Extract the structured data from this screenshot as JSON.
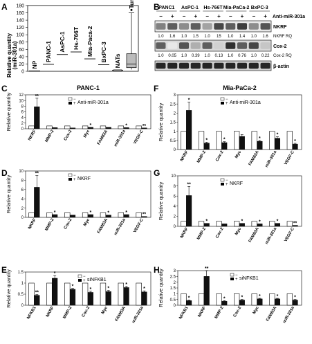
{
  "panelA": {
    "letter": "A",
    "ylabel": "Relative quantity",
    "ylabel_sub": "(miR-301a)",
    "yticks": [
      0,
      20,
      40,
      60,
      80,
      100,
      120,
      140,
      160,
      180
    ],
    "ymax": 180,
    "categories": [
      {
        "label": "NP",
        "value": 1
      },
      {
        "label": "PANC-1",
        "value": 19
      },
      {
        "label": "AsPC-1",
        "value": 46
      },
      {
        "label": "Hs-766T",
        "value": 53
      },
      {
        "label": "Mia-Paca-2",
        "value": 34
      },
      {
        "label": "BxPC-3",
        "value": 18
      },
      {
        "label": "NATs",
        "value": 3
      },
      {
        "label": "Tumours",
        "value": null
      }
    ],
    "tumour_box": {
      "min": 5,
      "q1": 10,
      "median": 20,
      "q3": 48,
      "max": 160,
      "outlier": 168
    }
  },
  "panelB": {
    "letter": "B",
    "cell_lines": [
      "PANC1",
      "AsPC-1",
      "Hs-766T",
      "Mia-PaCa-2",
      "BxPC-3"
    ],
    "treatment_label": "Anti-miR-301a",
    "signs": [
      "−",
      "+",
      "−",
      "+",
      "−",
      "+",
      "−",
      "+",
      "−",
      "+"
    ],
    "nkrf_label": "NKRF",
    "nkrf_rq_label": "NKRF RQ",
    "nkrf_rq": [
      "1.0",
      "1.6",
      "1.0",
      "1.5",
      "1.0",
      "15",
      "1.0",
      "1.4",
      "1.0",
      "1.6"
    ],
    "cox_label": "Cox-2",
    "cox_rq_label": "Cox-2 RQ",
    "cox_rq": [
      "1.0",
      "0.05",
      "1.0",
      "0.39",
      "1.0",
      "0.13",
      "1.0",
      "0.76",
      "1.0",
      "0.22"
    ],
    "actin_label": "β-actin"
  },
  "panels": [
    {
      "id": "C",
      "letter": "C",
      "title": "PANC-1",
      "ylabel": "Relative quantity",
      "legend": [
        "Anti-miR-301a"
      ],
      "ymax": 12,
      "yticks": [
        0,
        2,
        4,
        6,
        8,
        10,
        12
      ],
      "categories": [
        "NKRF",
        "MMP-2",
        "Cox-2",
        "Myc",
        "FAM83A",
        "miR-301a",
        "VEGF-C"
      ],
      "control": [
        1,
        1,
        1,
        1,
        1,
        1,
        1
      ],
      "treated": [
        7.8,
        0.4,
        0.3,
        0.5,
        0.5,
        0.4,
        0.3
      ],
      "error": [
        3.0,
        0,
        0,
        0,
        0,
        0,
        0
      ],
      "sig": [
        "**",
        "",
        "",
        "*",
        "",
        "*",
        "**"
      ]
    },
    {
      "id": "D",
      "letter": "D",
      "title": "",
      "ylabel": "Relative quantity",
      "legend": [
        "NKRF"
      ],
      "ymax": 10,
      "yticks": [
        0,
        2,
        4,
        6,
        8,
        10
      ],
      "categories": [
        "NKRF",
        "MMP-2",
        "Cox-2",
        "Myc",
        "FAM83A",
        "miR-301a",
        "VEGF-C"
      ],
      "control": [
        1,
        1,
        1,
        1,
        1,
        1,
        1
      ],
      "treated": [
        6.5,
        0.6,
        0.5,
        0.6,
        0.5,
        0.6,
        0.2
      ],
      "error": [
        2.5,
        0,
        0,
        0,
        0,
        0,
        0
      ],
      "sig": [
        "**",
        "*",
        "",
        "*",
        "*",
        "*",
        "**"
      ]
    },
    {
      "id": "E",
      "letter": "E",
      "title": "",
      "ylabel": "Relative quantity",
      "legend": [
        "siNFKB1"
      ],
      "ymax": 1.5,
      "yticks": [
        0,
        0.5,
        1,
        1.5
      ],
      "categories": [
        "NFKB1",
        "NKRF",
        "MMP-2",
        "Cox-2",
        "Myc",
        "FAM83A",
        "miR-301a"
      ],
      "control": [
        1,
        1,
        1,
        1,
        1,
        1,
        1
      ],
      "treated": [
        0.45,
        1.22,
        0.72,
        0.58,
        0.62,
        0.8,
        0.6
      ],
      "error": [
        0.03,
        0.12,
        0.04,
        0.05,
        0.05,
        0.05,
        0.05
      ],
      "sig": [
        "**",
        "*",
        "*",
        "*",
        "*",
        "*",
        "*"
      ]
    },
    {
      "id": "F",
      "letter": "F",
      "title": "Mia-PaCa-2",
      "ylabel": "Relative quantity",
      "legend": [
        "Anti-miR-301a"
      ],
      "ymax": 3,
      "yticks": [
        0,
        0.5,
        1,
        1.5,
        2,
        2.5,
        3
      ],
      "categories": [
        "NKRF",
        "MMP-2",
        "Cox-2",
        "Myc",
        "FAM83A",
        "miR-301a",
        "VEGF-C"
      ],
      "control": [
        1,
        1,
        1,
        1,
        1,
        1,
        1
      ],
      "treated": [
        2.15,
        0.35,
        0.38,
        0.72,
        0.45,
        0.62,
        0.3
      ],
      "error": [
        0.45,
        0.05,
        0.05,
        0.1,
        0.05,
        0.08,
        0.04
      ],
      "sig": [
        "*",
        "*",
        "*",
        "",
        "*",
        "*",
        "*"
      ]
    },
    {
      "id": "G",
      "letter": "G",
      "title": "",
      "ylabel": "Relative quantity",
      "legend": [
        "NKRF"
      ],
      "ymax": 10,
      "yticks": [
        0,
        2,
        4,
        6,
        8,
        10
      ],
      "categories": [
        "NKRF",
        "MMP-2",
        "Cox-2",
        "Myc",
        "FAM83A",
        "miR-301a",
        "VEGF-C"
      ],
      "control": [
        1,
        1,
        1,
        1,
        1,
        1,
        1
      ],
      "treated": [
        6.1,
        0.6,
        0.5,
        0.6,
        0.5,
        0.6,
        0.2
      ],
      "error": [
        1.8,
        0,
        0,
        0,
        0,
        0,
        0
      ],
      "sig": [
        "**",
        "*",
        "",
        "*",
        "*",
        "*",
        "**"
      ]
    },
    {
      "id": "H",
      "letter": "H",
      "title": "",
      "ylabel": "Relative quantity",
      "legend": [
        "siNFKB1"
      ],
      "ymax": 3,
      "yticks": [
        0,
        0.5,
        1,
        1.5,
        2,
        2.5,
        3
      ],
      "categories": [
        "NFKB1",
        "NKRF",
        "MMP-2",
        "Cox-2",
        "Myc",
        "FAM83A",
        "miR-301a"
      ],
      "control": [
        1,
        1,
        1,
        1,
        1,
        1,
        1
      ],
      "treated": [
        0.4,
        2.5,
        0.35,
        0.45,
        0.55,
        0.55,
        0.45
      ],
      "error": [
        0.05,
        0.5,
        0.05,
        0.05,
        0.05,
        0.05,
        0.05
      ],
      "sig": [
        "*",
        "**",
        "*",
        "*",
        "*",
        "*",
        "*"
      ]
    }
  ],
  "chart_data": [
    {
      "type": "bar",
      "panel": "A",
      "categories": [
        "NP",
        "PANC-1",
        "AsPC-1",
        "Hs-766T",
        "Mia-Paca-2",
        "BxPC-3",
        "NATs",
        "Tumours"
      ],
      "values": [
        1,
        19,
        46,
        53,
        34,
        18,
        3,
        20
      ],
      "ylabel": "Relative quantity (miR-301a)",
      "ylim": [
        0,
        180
      ]
    },
    {
      "type": "bar",
      "panel": "C",
      "title": "PANC-1",
      "categories": [
        "NKRF",
        "MMP-2",
        "Cox-2",
        "Myc",
        "FAM83A",
        "miR-301a",
        "VEGF-C"
      ],
      "series": [
        {
          "name": "−",
          "values": [
            1,
            1,
            1,
            1,
            1,
            1,
            1
          ]
        },
        {
          "name": "+",
          "values": [
            7.8,
            0.4,
            0.3,
            0.5,
            0.5,
            0.4,
            0.3
          ]
        }
      ],
      "ylabel": "Relative quantity",
      "ylim": [
        0,
        12
      ]
    },
    {
      "type": "bar",
      "panel": "D",
      "categories": [
        "NKRF",
        "MMP-2",
        "Cox-2",
        "Myc",
        "FAM83A",
        "miR-301a",
        "VEGF-C"
      ],
      "series": [
        {
          "name": "−",
          "values": [
            1,
            1,
            1,
            1,
            1,
            1,
            1
          ]
        },
        {
          "name": "+",
          "values": [
            6.5,
            0.6,
            0.5,
            0.6,
            0.5,
            0.6,
            0.2
          ]
        }
      ],
      "ylabel": "Relative quantity",
      "ylim": [
        0,
        10
      ]
    },
    {
      "type": "bar",
      "panel": "E",
      "categories": [
        "NFKB1",
        "NKRF",
        "MMP-2",
        "Cox-2",
        "Myc",
        "FAM83A",
        "miR-301a"
      ],
      "series": [
        {
          "name": "−",
          "values": [
            1,
            1,
            1,
            1,
            1,
            1,
            1
          ]
        },
        {
          "name": "+",
          "values": [
            0.45,
            1.22,
            0.72,
            0.58,
            0.62,
            0.8,
            0.6
          ]
        }
      ],
      "ylabel": "Relative quantity",
      "ylim": [
        0,
        1.5
      ]
    },
    {
      "type": "bar",
      "panel": "F",
      "title": "Mia-PaCa-2",
      "categories": [
        "NKRF",
        "MMP-2",
        "Cox-2",
        "Myc",
        "FAM83A",
        "miR-301a",
        "VEGF-C"
      ],
      "series": [
        {
          "name": "−",
          "values": [
            1,
            1,
            1,
            1,
            1,
            1,
            1
          ]
        },
        {
          "name": "+",
          "values": [
            2.15,
            0.35,
            0.38,
            0.72,
            0.45,
            0.62,
            0.3
          ]
        }
      ],
      "ylabel": "Relative quantity",
      "ylim": [
        0,
        3
      ]
    },
    {
      "type": "bar",
      "panel": "G",
      "categories": [
        "NKRF",
        "MMP-2",
        "Cox-2",
        "Myc",
        "FAM83A",
        "miR-301a",
        "VEGF-C"
      ],
      "series": [
        {
          "name": "−",
          "values": [
            1,
            1,
            1,
            1,
            1,
            1,
            1
          ]
        },
        {
          "name": "+",
          "values": [
            6.1,
            0.6,
            0.5,
            0.6,
            0.5,
            0.6,
            0.2
          ]
        }
      ],
      "ylabel": "Relative quantity",
      "ylim": [
        0,
        10
      ]
    },
    {
      "type": "bar",
      "panel": "H",
      "categories": [
        "NFKB1",
        "NKRF",
        "MMP-2",
        "Cox-2",
        "Myc",
        "FAM83A",
        "miR-301a"
      ],
      "series": [
        {
          "name": "−",
          "values": [
            1,
            1,
            1,
            1,
            1,
            1,
            1
          ]
        },
        {
          "name": "+",
          "values": [
            0.4,
            2.5,
            0.35,
            0.45,
            0.55,
            0.55,
            0.45
          ]
        }
      ],
      "ylabel": "Relative quantity",
      "ylim": [
        0,
        3
      ]
    }
  ]
}
